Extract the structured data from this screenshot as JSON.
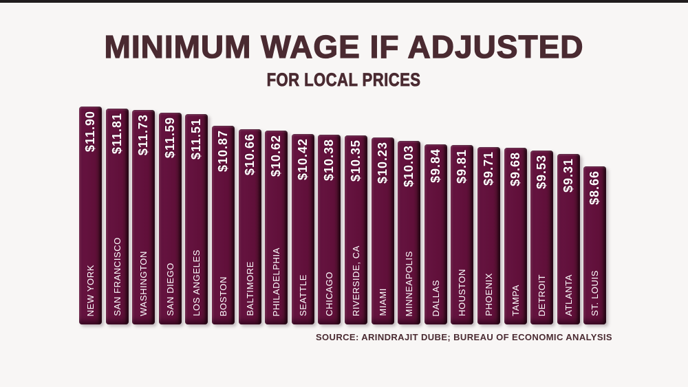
{
  "chart_data": {
    "type": "bar",
    "title": "MINIMUM WAGE IF ADJUSTED",
    "subtitle": "FOR LOCAL PRICES",
    "source": "SOURCE: ARINDRAJIT DUBE; BUREAU OF ECONOMIC ANALYSIS",
    "categories": [
      "NEW YORK",
      "SAN FRANCISCO",
      "WASHINGTON",
      "SAN DIEGO",
      "LOS ANGELES",
      "BOSTON",
      "BALTIMORE",
      "PHILADELPHIA",
      "SEATTLE",
      "CHICAGO",
      "RIVERSIDE, CA",
      "MIAMI",
      "MINNEAPOLIS",
      "DALLAS",
      "HOUSTON",
      "PHOENIX",
      "TAMPA",
      "DETROIT",
      "ATLANTA",
      "ST. LOUIS"
    ],
    "values": [
      11.9,
      11.81,
      11.73,
      11.59,
      11.51,
      10.87,
      10.66,
      10.62,
      10.42,
      10.38,
      10.35,
      10.23,
      10.03,
      9.84,
      9.81,
      9.71,
      9.68,
      9.53,
      9.31,
      8.66
    ],
    "value_labels": [
      "$11.90",
      "$11.81",
      "$11.73",
      "$11.59",
      "$11.51",
      "$10.87",
      "$10.66",
      "$10.62",
      "$10.42",
      "$10.38",
      "$10.35",
      "$10.23",
      "$10.03",
      "$9.84",
      "$9.81",
      "$9.71",
      "$9.68",
      "$9.53",
      "$9.31",
      "$8.66"
    ],
    "ylim": [
      0,
      12
    ],
    "legend": "none",
    "grid": "off",
    "colors": {
      "bar_fill": "#600f39",
      "bar_highlight": "#82305a",
      "bar_shadow_edge": "#240513",
      "bar_text": "#ffffff",
      "heading_text": "#4a2a31",
      "background": "#f8f6f5",
      "top_strip": "#201c1d"
    }
  }
}
